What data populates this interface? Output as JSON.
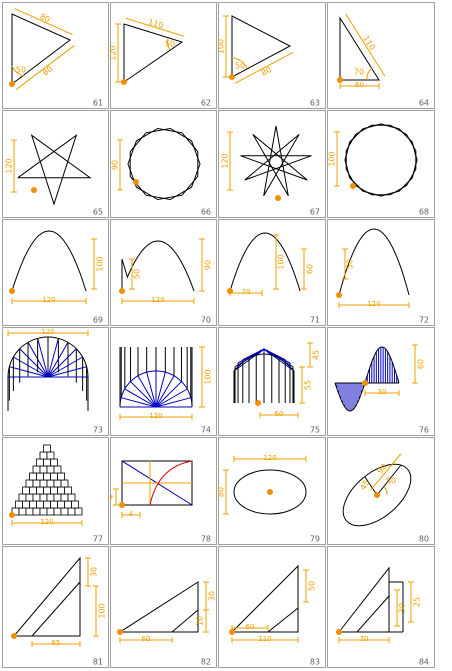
{
  "colors": {
    "grid": "#a0a0a0",
    "ink": "#000000",
    "dim": "#f0a000",
    "accent": "#0000c0",
    "red": "#e00000",
    "dot": "#f09000"
  },
  "cells": [
    {
      "id": "61",
      "number": "61",
      "labels": [
        "80",
        "50",
        "80"
      ]
    },
    {
      "id": "62",
      "number": "62",
      "labels": [
        "110",
        "120",
        "50"
      ]
    },
    {
      "id": "63",
      "number": "63",
      "labels": [
        "100",
        "50",
        "80"
      ]
    },
    {
      "id": "64",
      "number": "64",
      "labels": [
        "110",
        "70",
        "60"
      ]
    },
    {
      "id": "65",
      "number": "65",
      "labels": [
        "120"
      ]
    },
    {
      "id": "66",
      "number": "66",
      "labels": [
        "90"
      ]
    },
    {
      "id": "67",
      "number": "67",
      "labels": [
        "120"
      ]
    },
    {
      "id": "68",
      "number": "68",
      "labels": [
        "100"
      ]
    },
    {
      "id": "69",
      "number": "69",
      "labels": [
        "100",
        "120"
      ]
    },
    {
      "id": "70",
      "number": "70",
      "labels": [
        "50",
        "90",
        "120"
      ]
    },
    {
      "id": "71",
      "number": "71",
      "labels": [
        "100",
        "60",
        "70"
      ]
    },
    {
      "id": "72",
      "number": "72",
      "labels": [
        "50",
        "120"
      ]
    },
    {
      "id": "73",
      "number": "73",
      "labels": [
        "120"
      ]
    },
    {
      "id": "74",
      "number": "74",
      "labels": [
        "100",
        "120"
      ]
    },
    {
      "id": "75",
      "number": "75",
      "labels": [
        "45",
        "55",
        "60"
      ]
    },
    {
      "id": "76",
      "number": "76",
      "labels": [
        "60",
        "30"
      ]
    },
    {
      "id": "77",
      "number": "77",
      "labels": [
        "120"
      ]
    },
    {
      "id": "78",
      "number": "78",
      "labels": [
        "4",
        "4"
      ]
    },
    {
      "id": "79",
      "number": "79",
      "labels": [
        "120",
        "80"
      ]
    },
    {
      "id": "80",
      "number": "80",
      "labels": [
        "90",
        "45",
        "50"
      ]
    },
    {
      "id": "81",
      "number": "81",
      "labels": [
        "30",
        "100",
        "65"
      ]
    },
    {
      "id": "82",
      "number": "82",
      "labels": [
        "30",
        "10",
        "60"
      ]
    },
    {
      "id": "83",
      "number": "83",
      "labels": [
        "50",
        "60",
        "110"
      ]
    },
    {
      "id": "84",
      "number": "84",
      "labels": [
        "30",
        "25",
        "70"
      ]
    }
  ]
}
